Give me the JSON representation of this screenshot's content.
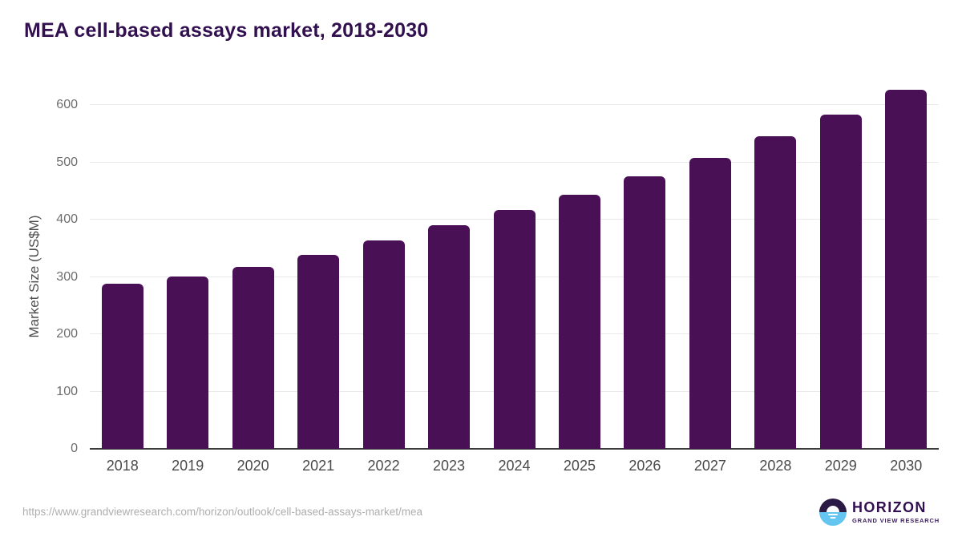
{
  "title": "MEA cell-based assays market, 2018-2030",
  "footer": {
    "source_url": "https://www.grandviewresearch.com/horizon/outlook/cell-based-assays-market/mea"
  },
  "logo": {
    "name": "HORIZON",
    "subtitle": "GRAND VIEW RESEARCH"
  },
  "colors": {
    "bar": "#4a1056",
    "title_text": "#32104f",
    "axis_title_text": "#4d4d4d",
    "y_tick_text": "#6e6e6e",
    "x_tick_text": "#4a4a4a",
    "gridline": "#e9e9ec",
    "baseline": "#3a3a3a",
    "url_text": "#aeaeae",
    "logo_dark_half": "#2b1b44",
    "logo_blue_half": "#64c5f0"
  },
  "chart_data": {
    "type": "bar",
    "title": "MEA cell-based assays market, 2018-2030",
    "categories": [
      "2018",
      "2019",
      "2020",
      "2021",
      "2022",
      "2023",
      "2024",
      "2025",
      "2026",
      "2027",
      "2028",
      "2029",
      "2030"
    ],
    "values": [
      288,
      301,
      317,
      338,
      363,
      390,
      417,
      444,
      475,
      508,
      545,
      583,
      626
    ],
    "xlabel": "",
    "ylabel": "Market Size (US$M)",
    "ylim": [
      0,
      600
    ],
    "yticks": [
      0,
      100,
      200,
      300,
      400,
      500,
      600
    ],
    "grid": true,
    "legend": false,
    "bar_color": "#4a1056"
  }
}
